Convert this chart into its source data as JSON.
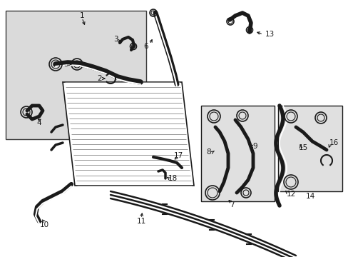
{
  "bg_color": "#ffffff",
  "line_color": "#1a1a1a",
  "shade_color": "#d4d4d4",
  "box_shade": "#e0e0e0",
  "figsize": [
    4.89,
    3.6
  ],
  "dpi": 100
}
